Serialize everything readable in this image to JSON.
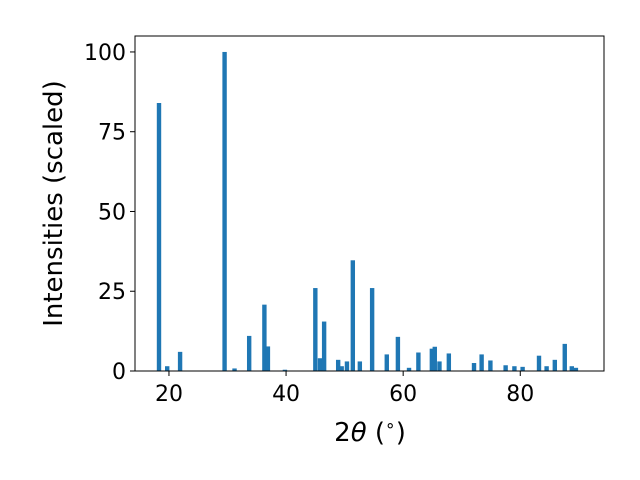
{
  "chart_data": {
    "type": "bar",
    "xlabel": "2θ (°)",
    "xlabel_parts": {
      "prefix": "2",
      "theta": "θ",
      "suffix": " (",
      "degree": "∘",
      "close": ")"
    },
    "ylabel": "Intensities (scaled)",
    "xlim": [
      14.2,
      94.3
    ],
    "ylim": [
      0,
      105
    ],
    "xticks": [
      20,
      40,
      60,
      80
    ],
    "yticks": [
      0,
      25,
      50,
      75,
      100
    ],
    "grid": false,
    "bar_color": "#1f77b4",
    "bar_width": 0.75,
    "x": [
      18.3,
      19.7,
      21.9,
      29.5,
      31.2,
      33.7,
      36.3,
      36.9,
      39.8,
      45.0,
      45.8,
      46.5,
      48.9,
      49.5,
      50.4,
      51.4,
      52.6,
      54.7,
      57.2,
      59.1,
      61.0,
      62.6,
      64.9,
      65.4,
      66.2,
      67.8,
      72.1,
      73.4,
      74.9,
      77.5,
      79.0,
      80.4,
      83.2,
      84.5,
      85.9,
      87.6,
      88.8,
      89.5
    ],
    "values": [
      84,
      1.5,
      6,
      100,
      0.8,
      11,
      20.8,
      7.7,
      0.4,
      26,
      4,
      15.5,
      3.5,
      1.5,
      3,
      34.7,
      3,
      26,
      5.2,
      10.7,
      1,
      5.8,
      7,
      7.6,
      3,
      5.5,
      2.5,
      5.2,
      3.3,
      1.8,
      1.5,
      1.3,
      4.8,
      1.5,
      3.5,
      8.5,
      1.5,
      1
    ]
  }
}
